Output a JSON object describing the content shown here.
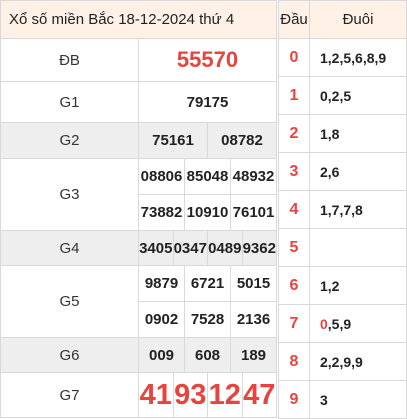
{
  "title": "Xổ số miền Bắc 18-12-2024 thứ 4",
  "prizes": {
    "db": {
      "label": "ĐB",
      "numbers": [
        "55570"
      ]
    },
    "g1": {
      "label": "G1",
      "numbers": [
        "79175"
      ]
    },
    "g2": {
      "label": "G2",
      "numbers": [
        "75161",
        "08782"
      ]
    },
    "g3": {
      "label": "G3",
      "numbers": [
        "08806",
        "85048",
        "48932",
        "73882",
        "10910",
        "76101"
      ]
    },
    "g4": {
      "label": "G4",
      "numbers": [
        "3405",
        "0347",
        "0489",
        "9362"
      ]
    },
    "g5": {
      "label": "G5",
      "numbers": [
        "9879",
        "6721",
        "5015",
        "0902",
        "7528",
        "2136"
      ]
    },
    "g6": {
      "label": "G6",
      "numbers": [
        "009",
        "608",
        "189"
      ]
    },
    "g7": {
      "label": "G7",
      "numbers": [
        "41",
        "93",
        "12",
        "47"
      ]
    }
  },
  "loto": {
    "head_label": "Đầu",
    "tail_label": "Đuôi",
    "rows": [
      {
        "dau": "0",
        "duoi": "1,2,5,6,8,9"
      },
      {
        "dau": "1",
        "duoi": "0,2,5"
      },
      {
        "dau": "2",
        "duoi": "1,8"
      },
      {
        "dau": "3",
        "duoi": "2,6"
      },
      {
        "dau": "4",
        "duoi": "1,7,7,8"
      },
      {
        "dau": "5",
        "duoi": ""
      },
      {
        "dau": "6",
        "duoi": "1,2"
      },
      {
        "dau": "7",
        "duoi_hl": "0",
        "duoi_rest": ",5,9"
      },
      {
        "dau": "8",
        "duoi": "2,2,9,9"
      },
      {
        "dau": "9",
        "duoi": "3"
      }
    ]
  },
  "colors": {
    "accent": "#e8433f",
    "header_bg": "#fff1e6",
    "stripe": "#eeeeee"
  }
}
